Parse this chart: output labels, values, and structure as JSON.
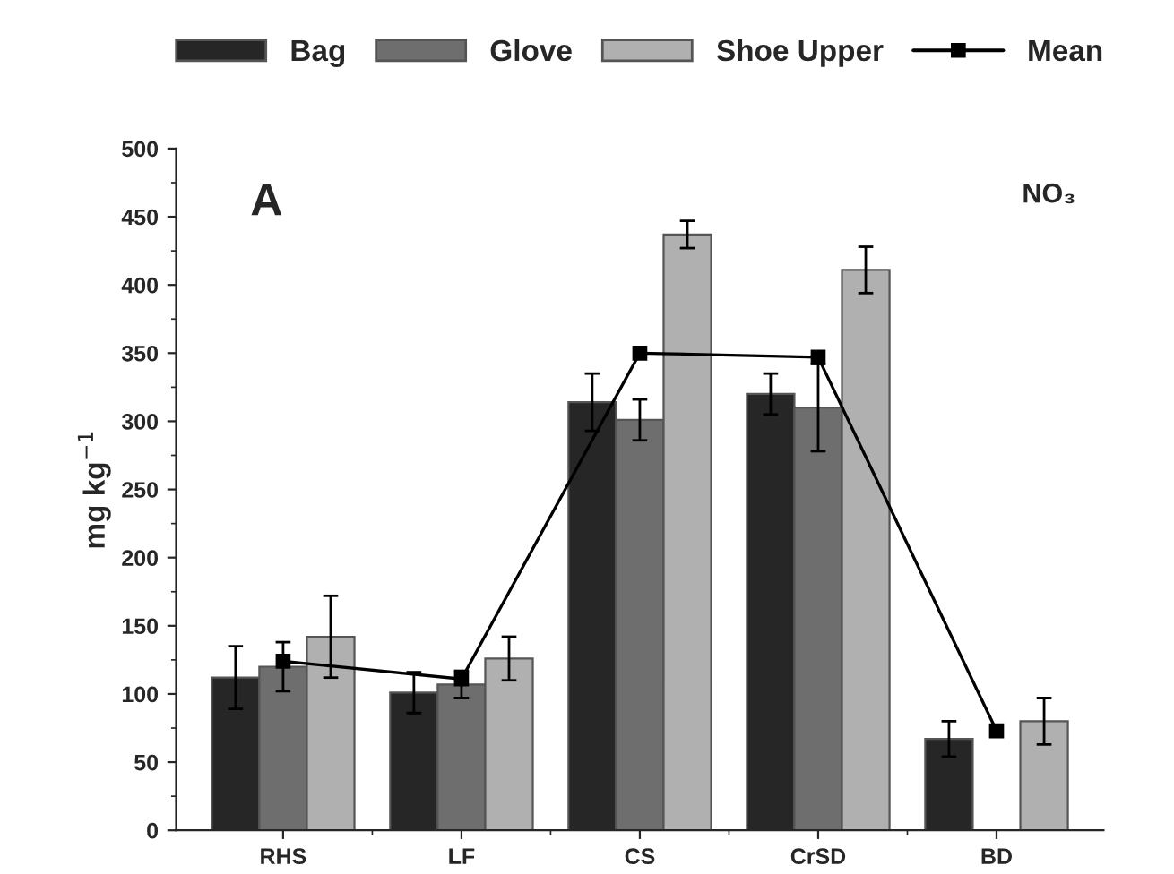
{
  "chart_data": {
    "type": "bar",
    "categories": [
      "RHS",
      "LF",
      "CS",
      "CrSD",
      "BD"
    ],
    "ylabel": "mg kg$^{−1}$",
    "annotations": [
      "A",
      "NO₃"
    ],
    "ylim": [
      0,
      500
    ],
    "yticks": [
      0,
      50,
      100,
      150,
      200,
      250,
      300,
      350,
      400,
      450,
      500
    ],
    "legend": "top",
    "grid": false,
    "series": [
      {
        "name": "Bag",
        "color": "#262626",
        "values": [
          112,
          101,
          314,
          320,
          67
        ],
        "errors": [
          23,
          15,
          21,
          15,
          13
        ]
      },
      {
        "name": "Glove",
        "color": "#6e6e6e",
        "values": [
          120,
          107,
          301,
          310,
          null
        ],
        "errors": [
          18,
          10,
          15,
          32,
          null
        ]
      },
      {
        "name": "Shoe Upper",
        "color": "#b0b0b0",
        "values": [
          142,
          126,
          437,
          411,
          80
        ],
        "errors": [
          30,
          16,
          10,
          17,
          17
        ]
      },
      {
        "name": "Mean",
        "type": "line",
        "color": "#000000",
        "marker": "square",
        "line_style": "solid",
        "values": [
          124,
          111,
          350,
          347,
          73
        ]
      }
    ]
  }
}
